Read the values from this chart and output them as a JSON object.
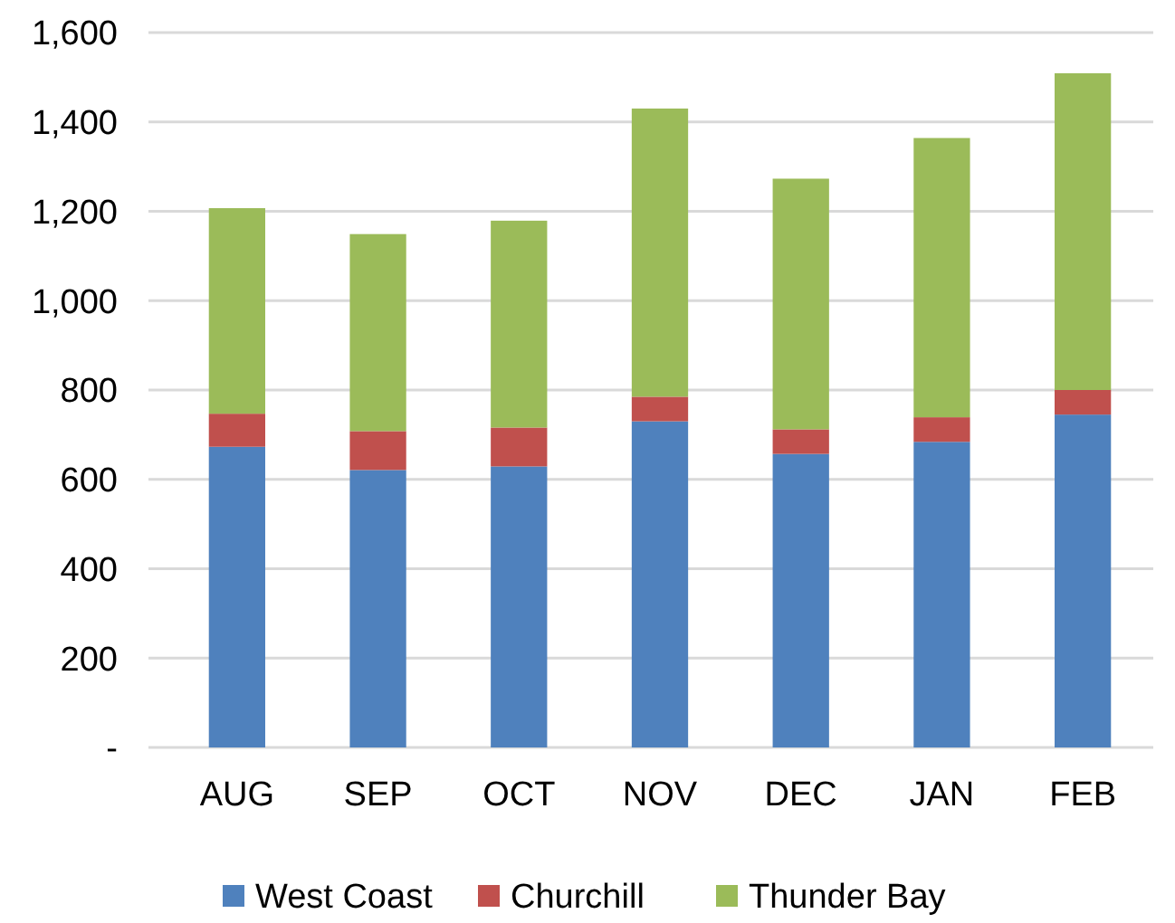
{
  "chart_data": {
    "type": "bar",
    "stacked": true,
    "categories": [
      "AUG",
      "SEP",
      "OCT",
      "NOV",
      "DEC",
      "JAN",
      "FEB"
    ],
    "series": [
      {
        "name": "West Coast",
        "color": "#4f81bd",
        "values": [
          673,
          621,
          629,
          730,
          657,
          684,
          745
        ]
      },
      {
        "name": "Churchill",
        "color": "#c0504d",
        "values": [
          74,
          87,
          87,
          55,
          55,
          55,
          55
        ]
      },
      {
        "name": "Thunder Bay",
        "color": "#9bbb59",
        "values": [
          460,
          441,
          463,
          645,
          561,
          625,
          709
        ]
      }
    ],
    "ylim": [
      0,
      1600
    ],
    "yticks": [
      {
        "value": 0,
        "label": "-"
      },
      {
        "value": 200,
        "label": "200"
      },
      {
        "value": 400,
        "label": "400"
      },
      {
        "value": 600,
        "label": "600"
      },
      {
        "value": 800,
        "label": "800"
      },
      {
        "value": 1000,
        "label": "1,000"
      },
      {
        "value": 1200,
        "label": "1,200"
      },
      {
        "value": 1400,
        "label": "1,400"
      },
      {
        "value": 1600,
        "label": "1,600"
      }
    ],
    "grid": "y",
    "legend": "bottom"
  }
}
